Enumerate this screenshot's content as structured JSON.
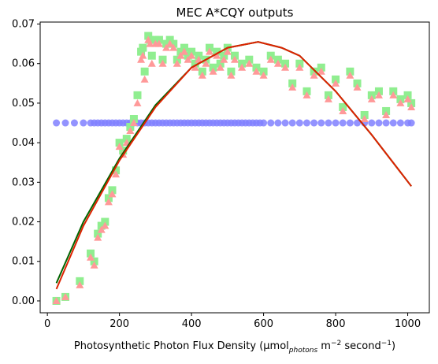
{
  "chart_data": {
    "type": "scatter",
    "title": "MEC A*CQY outputs",
    "xlabel_parts": {
      "prefix": "Photosynthetic Photon Flux Density (µmol",
      "subscript": "photons",
      "mid": " m",
      "sup1": "−2",
      "mid2": " second",
      "sup2": "−1",
      "suffix": ")"
    },
    "ylabel": "",
    "xlim": [
      -20,
      1060
    ],
    "ylim": [
      -0.003,
      0.0705
    ],
    "x_ticks": [
      0,
      200,
      400,
      600,
      800,
      1000
    ],
    "x_tick_labels": [
      "0",
      "200",
      "400",
      "600",
      "800",
      "1000"
    ],
    "y_ticks": [
      0.0,
      0.01,
      0.02,
      0.03,
      0.04,
      0.05,
      0.06,
      0.07
    ],
    "y_tick_labels": [
      "0.00",
      "0.01",
      "0.02",
      "0.03",
      "0.04",
      "0.05",
      "0.06",
      "0.07"
    ],
    "grid": false,
    "series": [
      {
        "marker": "circle",
        "color": "#8080ff",
        "x": [
          25,
          50,
          75,
          100,
          120,
          130,
          140,
          150,
          160,
          170,
          180,
          190,
          200,
          210,
          220,
          230,
          240,
          250,
          260,
          270,
          280,
          290,
          300,
          310,
          320,
          330,
          340,
          350,
          360,
          370,
          380,
          390,
          400,
          410,
          420,
          430,
          440,
          450,
          460,
          470,
          480,
          490,
          500,
          510,
          520,
          530,
          540,
          550,
          560,
          570,
          580,
          590,
          600,
          620,
          640,
          660,
          680,
          700,
          720,
          740,
          760,
          780,
          800,
          820,
          840,
          860,
          880,
          900,
          920,
          940,
          960,
          980,
          1000,
          1010
        ],
        "y": [
          0.045,
          0.045,
          0.045,
          0.045,
          0.045,
          0.045,
          0.045,
          0.045,
          0.045,
          0.045,
          0.045,
          0.045,
          0.045,
          0.045,
          0.045,
          0.045,
          0.045,
          0.045,
          0.045,
          0.045,
          0.045,
          0.045,
          0.045,
          0.045,
          0.045,
          0.045,
          0.045,
          0.045,
          0.045,
          0.045,
          0.045,
          0.045,
          0.045,
          0.045,
          0.045,
          0.045,
          0.045,
          0.045,
          0.045,
          0.045,
          0.045,
          0.045,
          0.045,
          0.045,
          0.045,
          0.045,
          0.045,
          0.045,
          0.045,
          0.045,
          0.045,
          0.045,
          0.045,
          0.045,
          0.045,
          0.045,
          0.045,
          0.045,
          0.045,
          0.045,
          0.045,
          0.045,
          0.045,
          0.045,
          0.045,
          0.045,
          0.045,
          0.045,
          0.045,
          0.045,
          0.045,
          0.045,
          0.045,
          0.045
        ]
      },
      {
        "marker": "square",
        "color": "#90ee90",
        "x": [
          25,
          50,
          90,
          120,
          130,
          140,
          150,
          160,
          170,
          180,
          190,
          200,
          210,
          220,
          230,
          240,
          250,
          260,
          265,
          270,
          280,
          285,
          290,
          300,
          310,
          320,
          330,
          340,
          350,
          360,
          370,
          380,
          390,
          400,
          410,
          420,
          430,
          440,
          450,
          460,
          470,
          480,
          490,
          500,
          510,
          520,
          540,
          560,
          580,
          600,
          620,
          640,
          660,
          680,
          700,
          720,
          740,
          760,
          780,
          800,
          820,
          840,
          860,
          880,
          900,
          920,
          940,
          960,
          980,
          1000,
          1010
        ],
        "y": [
          0.0,
          0.001,
          0.005,
          0.012,
          0.01,
          0.017,
          0.019,
          0.02,
          0.026,
          0.028,
          0.033,
          0.04,
          0.038,
          0.041,
          0.044,
          0.046,
          0.052,
          0.063,
          0.064,
          0.058,
          0.067,
          0.066,
          0.062,
          0.066,
          0.066,
          0.061,
          0.065,
          0.066,
          0.065,
          0.061,
          0.063,
          0.064,
          0.062,
          0.063,
          0.06,
          0.062,
          0.058,
          0.061,
          0.064,
          0.059,
          0.063,
          0.06,
          0.062,
          0.064,
          0.058,
          0.062,
          0.06,
          0.061,
          0.059,
          0.058,
          0.062,
          0.061,
          0.06,
          0.055,
          0.06,
          0.053,
          0.058,
          0.059,
          0.052,
          0.056,
          0.049,
          0.058,
          0.055,
          0.047,
          0.052,
          0.053,
          0.048,
          0.053,
          0.051,
          0.052,
          0.05
        ]
      },
      {
        "marker": "triangle",
        "color": "#ff9999",
        "x": [
          25,
          50,
          90,
          120,
          130,
          140,
          150,
          160,
          170,
          180,
          190,
          200,
          210,
          220,
          230,
          240,
          250,
          260,
          265,
          270,
          280,
          285,
          290,
          300,
          310,
          320,
          330,
          340,
          350,
          360,
          370,
          380,
          390,
          400,
          410,
          420,
          430,
          440,
          450,
          460,
          470,
          480,
          490,
          500,
          510,
          520,
          540,
          560,
          580,
          600,
          620,
          640,
          660,
          680,
          700,
          720,
          740,
          760,
          780,
          800,
          820,
          840,
          860,
          880,
          900,
          920,
          940,
          960,
          980,
          1000,
          1010
        ],
        "y": [
          0.0,
          0.001,
          0.004,
          0.011,
          0.009,
          0.016,
          0.018,
          0.019,
          0.025,
          0.027,
          0.032,
          0.039,
          0.037,
          0.04,
          0.043,
          0.045,
          0.05,
          0.061,
          0.062,
          0.056,
          0.066,
          0.065,
          0.06,
          0.065,
          0.065,
          0.06,
          0.064,
          0.065,
          0.064,
          0.06,
          0.062,
          0.063,
          0.061,
          0.062,
          0.059,
          0.061,
          0.057,
          0.06,
          0.063,
          0.058,
          0.062,
          0.059,
          0.061,
          0.063,
          0.057,
          0.061,
          0.059,
          0.06,
          0.058,
          0.057,
          0.061,
          0.06,
          0.059,
          0.054,
          0.059,
          0.052,
          0.057,
          0.058,
          0.051,
          0.055,
          0.048,
          0.057,
          0.054,
          0.046,
          0.051,
          0.052,
          0.047,
          0.052,
          0.05,
          0.051,
          0.049
        ]
      },
      {
        "marker": "line",
        "color": "#006400",
        "x": [
          25,
          100,
          200,
          300,
          400,
          500,
          585,
          650,
          700,
          800,
          900,
          1010
        ],
        "y": [
          0.0045,
          0.02,
          0.036,
          0.0495,
          0.059,
          0.064,
          0.0655,
          0.064,
          0.062,
          0.053,
          0.042,
          0.029
        ]
      },
      {
        "marker": "line",
        "color": "#dd2200",
        "x": [
          25,
          100,
          200,
          300,
          400,
          500,
          585,
          650,
          700,
          800,
          900,
          1010
        ],
        "y": [
          0.003,
          0.019,
          0.0355,
          0.049,
          0.059,
          0.064,
          0.0655,
          0.064,
          0.062,
          0.053,
          0.042,
          0.029
        ]
      }
    ]
  }
}
